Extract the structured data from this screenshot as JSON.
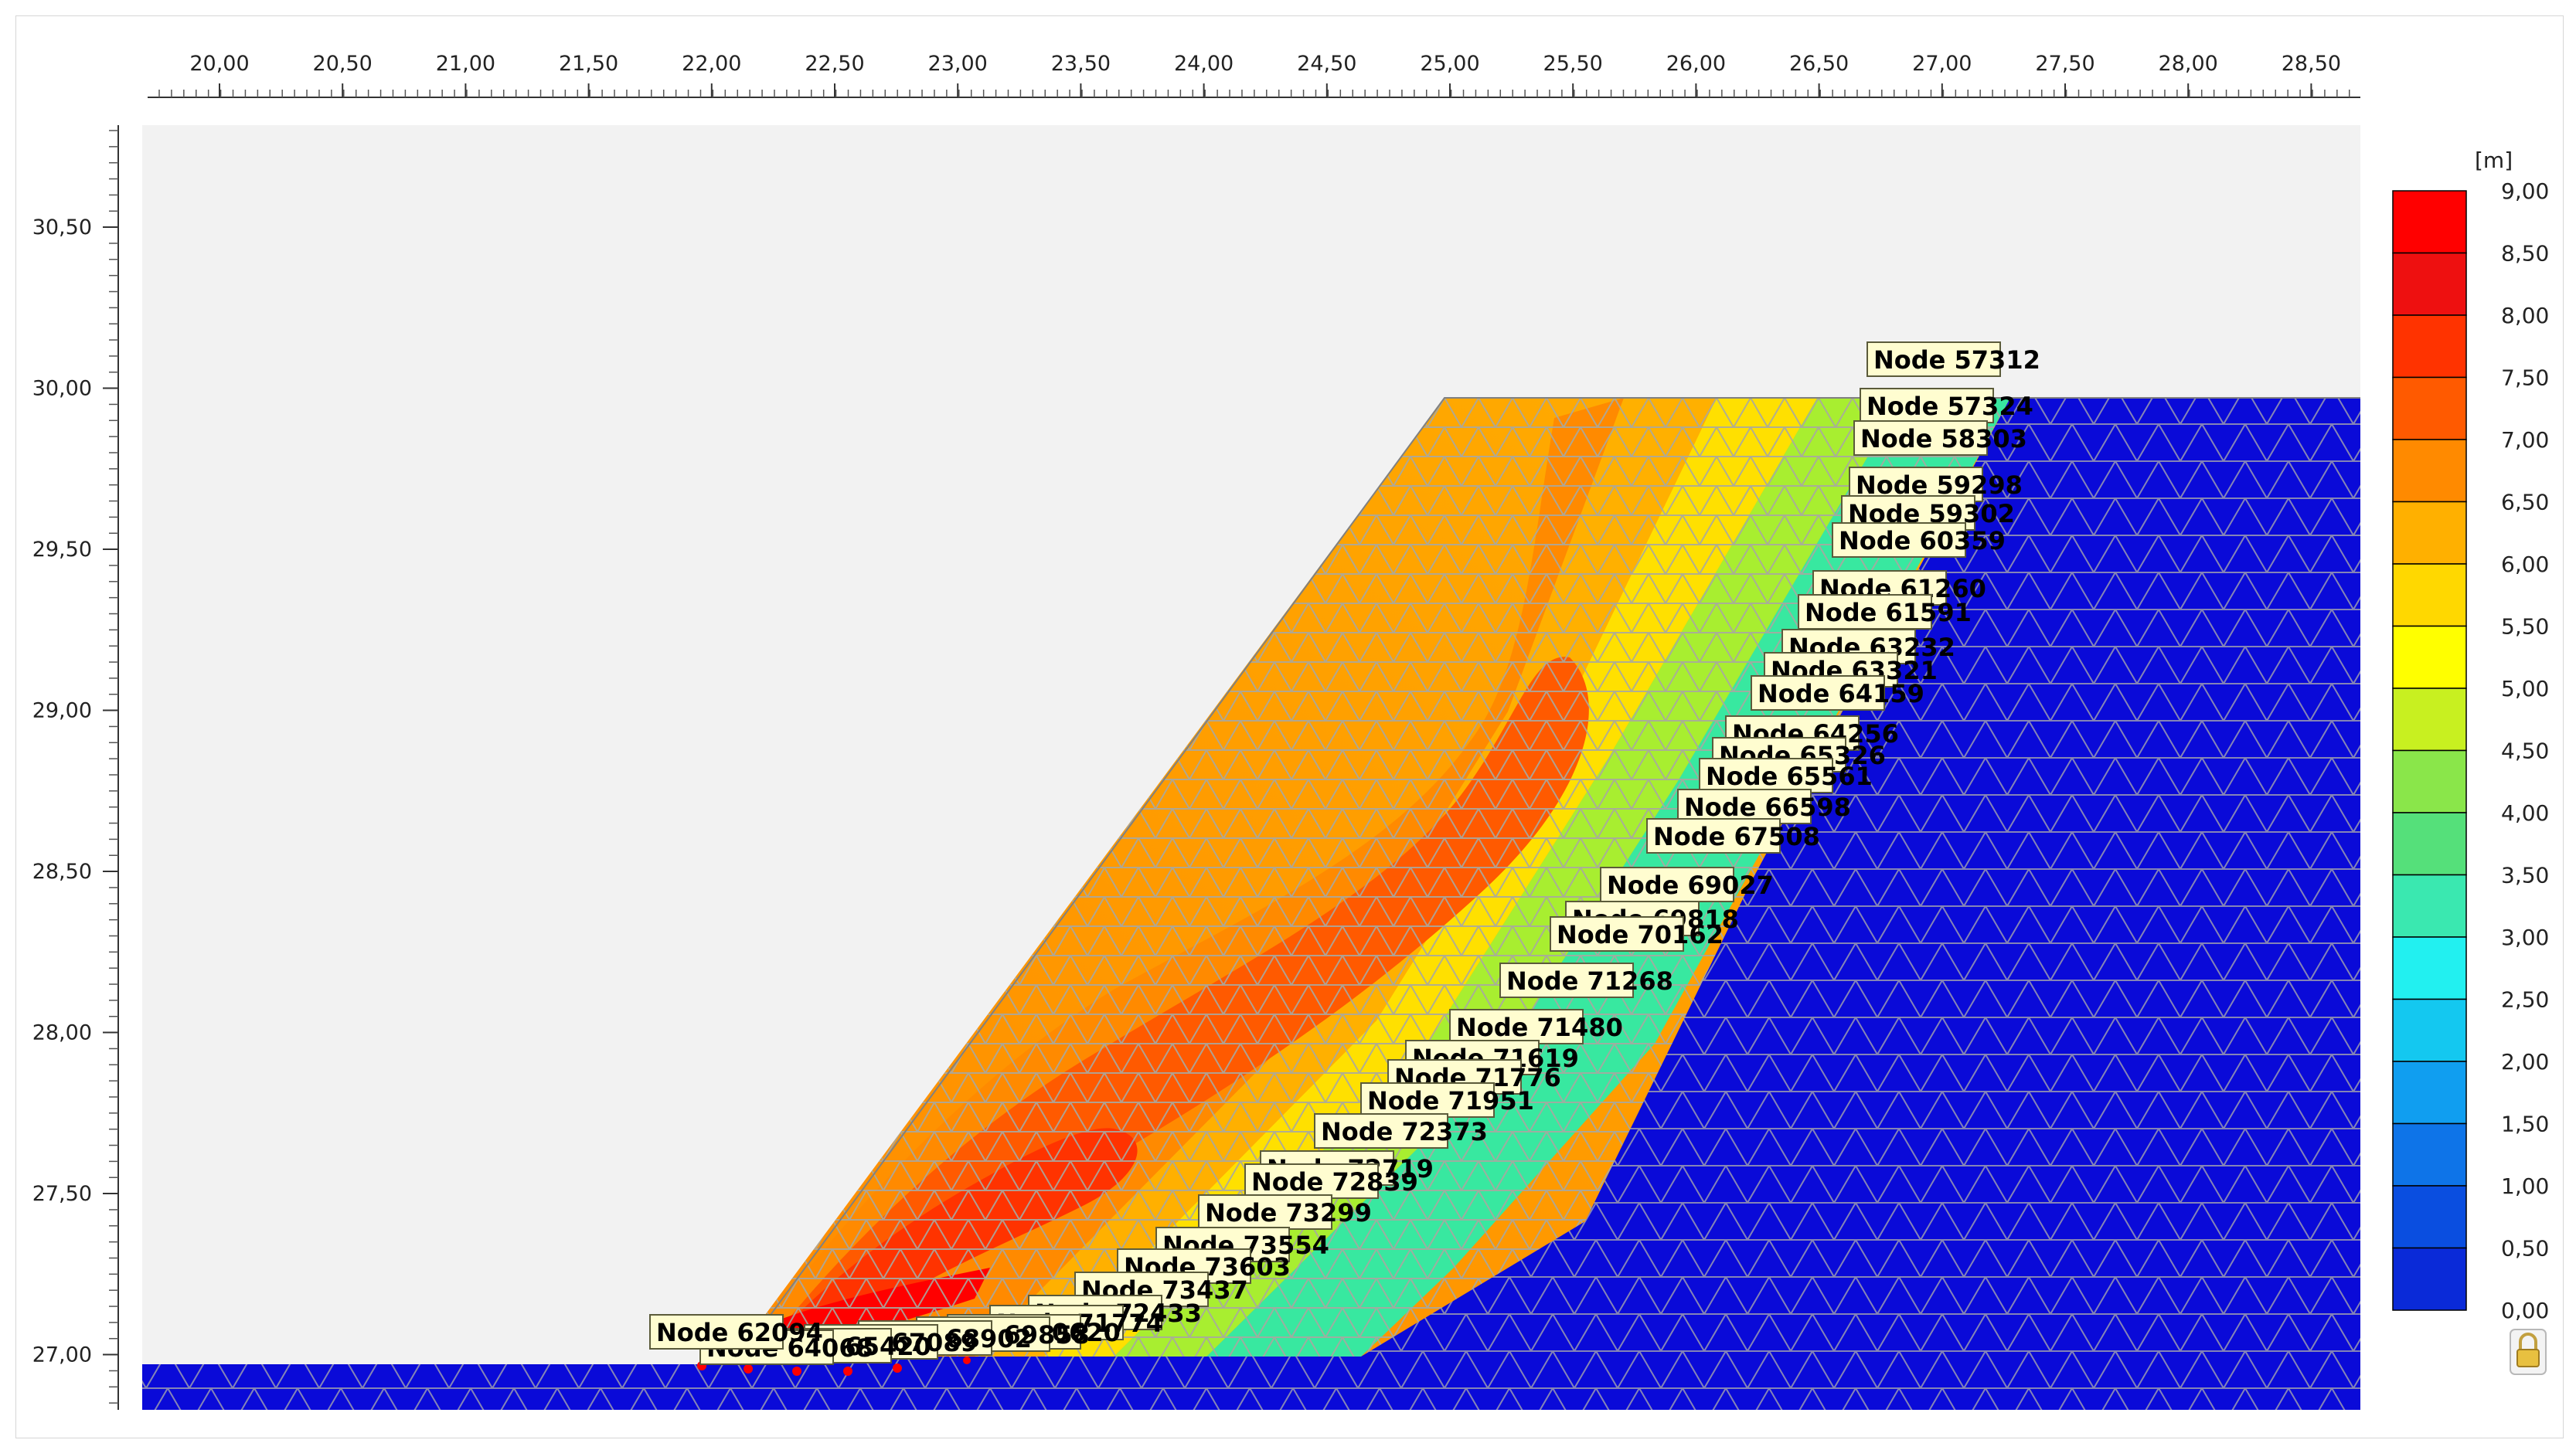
{
  "plot": {
    "x_ticks": [
      "20,00",
      "20,50",
      "21,00",
      "21,50",
      "22,00",
      "22,50",
      "23,00",
      "23,50",
      "24,00",
      "24,50",
      "25,00",
      "25,50",
      "26,00",
      "26,50",
      "27,00",
      "27,50",
      "28,00",
      "28,50"
    ],
    "y_ticks": [
      "30,50",
      "30,00",
      "29,50",
      "29,00",
      "28,50",
      "28,00",
      "27,50",
      "27,00"
    ],
    "background_color": "#f0f0f0",
    "soil_color": "#0a0ad8",
    "mesh_color": "#9a9ab0"
  },
  "legend": {
    "unit": "[m]",
    "values": [
      "9,00",
      "8,50",
      "8,00",
      "7,50",
      "7,00",
      "6,50",
      "6,00",
      "5,50",
      "5,00",
      "4,50",
      "4,00",
      "3,50",
      "3,00",
      "2,50",
      "2,00",
      "1,50",
      "1,00",
      "0,50",
      "0,00"
    ],
    "colors": [
      "#ff0000",
      "#ee1010",
      "#ff3300",
      "#ff5a00",
      "#ff8a00",
      "#ffb000",
      "#ffd800",
      "#ffff00",
      "#c8f020",
      "#8ae64a",
      "#55e07a",
      "#3ae8b0",
      "#22f0f0",
      "#14c8f0",
      "#109ef0",
      "#0e74e8",
      "#0a4ee0",
      "#0a2ad8",
      "#0000d0"
    ],
    "lock_icon": "lock-icon"
  },
  "node_labels": [
    "Node 57312",
    "Node 57324",
    "Node 58303",
    "Node 59298",
    "Node 59302",
    "Node 60359",
    "Node 61260",
    "Node 61591",
    "Node 63232",
    "Node 63321",
    "Node 64159",
    "Node 64256",
    "Node 65326",
    "Node 65561",
    "Node 66598",
    "Node 67508",
    "Node 69027",
    "Node 69818",
    "Node 70162",
    "Node 71268",
    "Node 71480",
    "Node 71619",
    "Node 71776",
    "Node 71951",
    "Node 72373",
    "Node 72719",
    "Node 72839",
    "Node 73299",
    "Node 73554",
    "Node 73603",
    "Node 73437",
    "Node 72433",
    "Node 71774",
    "Node 70620",
    "Node 69858",
    "Node 68902",
    "Node 67089",
    "Node 65420",
    "Node 64068",
    "Node 62094"
  ]
}
